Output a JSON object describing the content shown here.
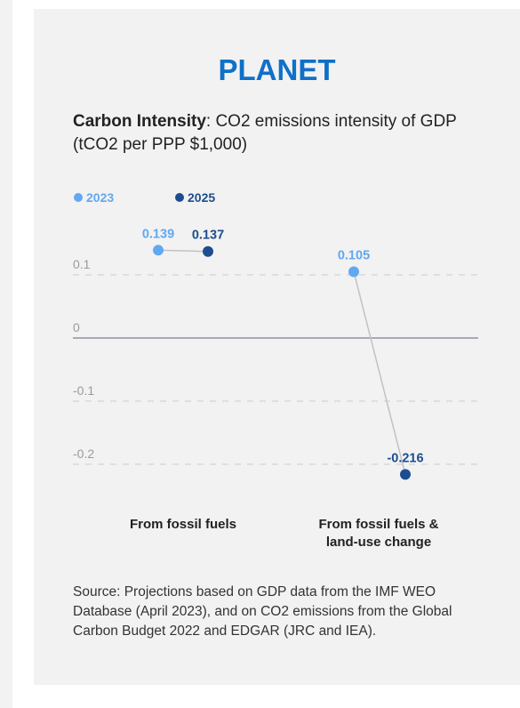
{
  "panel": {
    "heading": "PLANET",
    "subtitle_bold": "Carbon Intensity",
    "subtitle_rest": ": CO2 emissions intensity of GDP (tCO2 per PPP $1,000)",
    "source": "Source: Projections based on GDP data from the IMF WEO Database (April 2023), and on CO2 emissions from the Global Carbon Budget 2022 and EDGAR (JRC and IEA)."
  },
  "colors": {
    "series_2023": "#62a8ee",
    "series_2025": "#1c4d8f",
    "connector": "#c2c2c2",
    "gridline": "#d4d4d4",
    "zeroline": "#7a8290",
    "tick_text": "#9a9a9a"
  },
  "chart_data": {
    "type": "scatter",
    "title": "",
    "legend_placement": "top-left",
    "grid": true,
    "ylim": [
      -0.24,
      0.15
    ],
    "yticks": [
      0.1,
      0,
      -0.1,
      -0.2
    ],
    "ytick_labels": [
      "0.1",
      "0",
      "-0.1",
      "-0.2"
    ],
    "categories": [
      "From fossil fuels",
      "From fossil fuels & land-use change"
    ],
    "series": [
      {
        "name": "2023",
        "values": [
          0.139,
          0.105
        ],
        "labels": [
          "0.139",
          "0.105"
        ]
      },
      {
        "name": "2025",
        "values": [
          0.137,
          -0.216
        ],
        "labels": [
          "0.137",
          "-0.216"
        ]
      }
    ]
  }
}
